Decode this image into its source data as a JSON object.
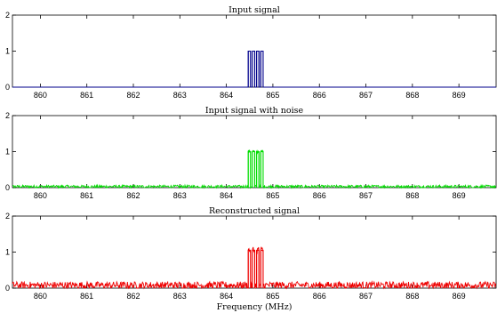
{
  "xlabel": "Frequency (MHz)",
  "chart_data": [
    {
      "type": "line",
      "title": "Input signal",
      "xlim": [
        859.4,
        869.8
      ],
      "ylim": [
        0,
        2
      ],
      "xticks": [
        860,
        861,
        862,
        863,
        864,
        865,
        866,
        867,
        868,
        869
      ],
      "yticks": [
        0,
        1,
        2
      ],
      "grid": false,
      "series": [
        {
          "color": "#00008b",
          "noise": 0,
          "peak_noise": 0,
          "baseline": 0,
          "pulses": [
            {
              "x0": 864.47,
              "x1": 864.52,
              "y": 1
            },
            {
              "x0": 864.56,
              "x1": 864.61,
              "y": 1
            },
            {
              "x0": 864.65,
              "x1": 864.7,
              "y": 1
            },
            {
              "x0": 864.74,
              "x1": 864.79,
              "y": 1
            }
          ]
        }
      ]
    },
    {
      "type": "line",
      "title": "Input signal with noise",
      "xlim": [
        859.4,
        869.8
      ],
      "ylim": [
        0,
        2
      ],
      "xticks": [
        860,
        861,
        862,
        863,
        864,
        865,
        866,
        867,
        868,
        869
      ],
      "yticks": [
        0,
        1,
        2
      ],
      "grid": false,
      "series": [
        {
          "color": "#00dd00",
          "noise": 0.04,
          "peak_noise": 0.05,
          "baseline": 0.03,
          "pulses": [
            {
              "x0": 864.47,
              "x1": 864.52,
              "y": 1
            },
            {
              "x0": 864.56,
              "x1": 864.61,
              "y": 1
            },
            {
              "x0": 864.65,
              "x1": 864.7,
              "y": 1
            },
            {
              "x0": 864.74,
              "x1": 864.79,
              "y": 1
            }
          ]
        }
      ]
    },
    {
      "type": "line",
      "title": "Reconstructed signal",
      "xlim": [
        859.4,
        869.8
      ],
      "ylim": [
        0,
        2
      ],
      "xticks": [
        860,
        861,
        862,
        863,
        864,
        865,
        866,
        867,
        868,
        869
      ],
      "yticks": [
        0,
        1,
        2
      ],
      "grid": false,
      "series": [
        {
          "color": "#ee0000",
          "noise": 0.1,
          "peak_noise": 0.12,
          "baseline": 0.08,
          "pulses": [
            {
              "x0": 864.47,
              "x1": 864.52,
              "y": 1.05
            },
            {
              "x0": 864.56,
              "x1": 864.61,
              "y": 1.05
            },
            {
              "x0": 864.65,
              "x1": 864.7,
              "y": 1.05
            },
            {
              "x0": 864.74,
              "x1": 864.79,
              "y": 1.05
            }
          ]
        }
      ]
    }
  ]
}
